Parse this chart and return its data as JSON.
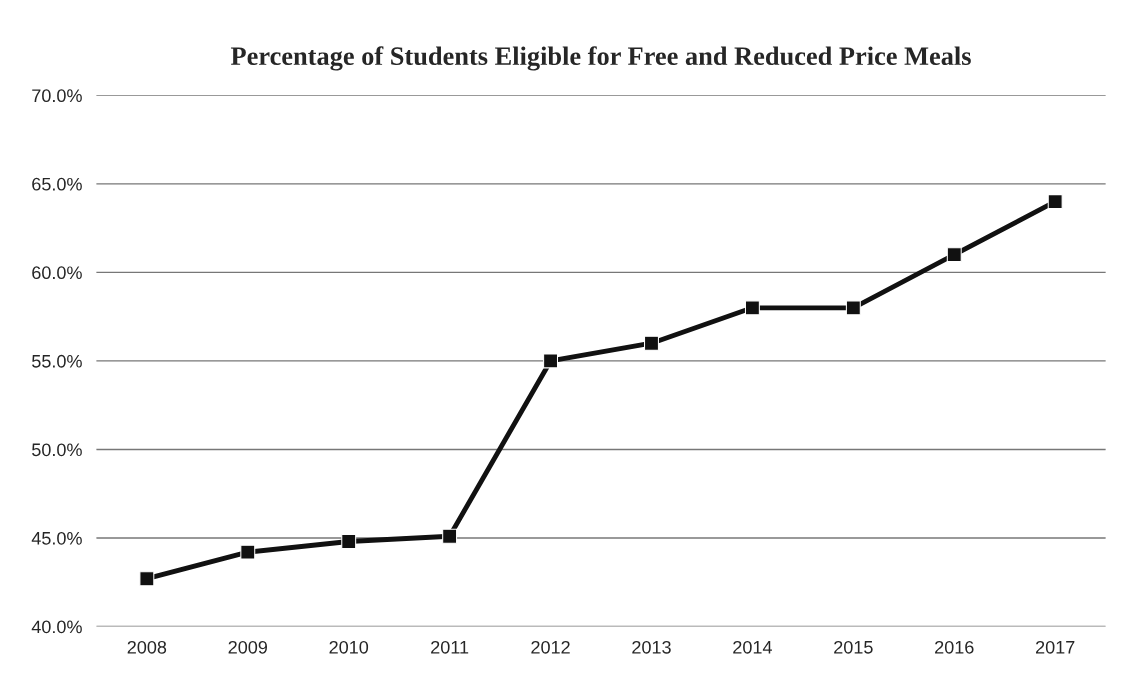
{
  "chart_data": {
    "type": "line",
    "title": "Percentage of Students Eligible for Free and Reduced Price Meals",
    "categories": [
      "2008",
      "2009",
      "2010",
      "2011",
      "2012",
      "2013",
      "2014",
      "2015",
      "2016",
      "2017"
    ],
    "series": [
      {
        "color": "#111111",
        "values": [
          42.7,
          44.2,
          44.8,
          45.1,
          55.0,
          56.0,
          58.0,
          58.0,
          61.0,
          64.0
        ]
      }
    ],
    "ylim": [
      40,
      70
    ],
    "yticks": [
      {
        "value": 40,
        "label": "40.0%"
      },
      {
        "value": 45,
        "label": "45.0%"
      },
      {
        "value": 50,
        "label": "50.0%"
      },
      {
        "value": 55,
        "label": "55.0%"
      },
      {
        "value": 60,
        "label": "60.0%"
      },
      {
        "value": 65,
        "label": "65.0%"
      },
      {
        "value": 70,
        "label": "70.0%"
      }
    ],
    "grid": "y",
    "marker": "square",
    "line_style": "solid",
    "legend": false
  }
}
